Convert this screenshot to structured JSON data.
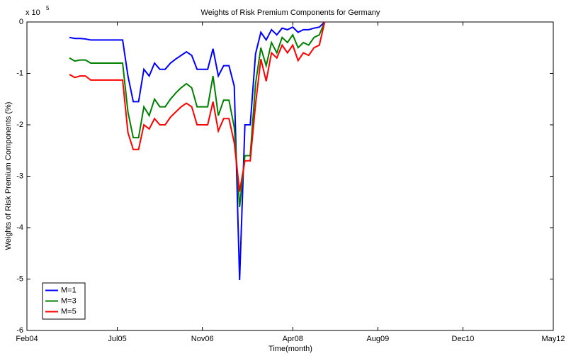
{
  "chart_data": {
    "type": "line",
    "title": "Weights of Risk Premium Components for Germany",
    "x_label": "Time(month)",
    "y_label": "Weights of Risk Premium Components (%)",
    "y_multiplier": "x 10",
    "y_multiplier_exponent": "5",
    "x": [
      "Oct04",
      "Nov04",
      "Dec04",
      "Jan05",
      "Feb05",
      "Mar05",
      "Apr05",
      "May05",
      "Jun05",
      "Jul05",
      "Aug05",
      "Sep05",
      "Oct05",
      "Nov05",
      "Dec05",
      "Jan06",
      "Feb06",
      "Mar06",
      "Apr06",
      "May06",
      "Jun06",
      "Jul06",
      "Aug06",
      "Sep06",
      "Oct06",
      "Nov06",
      "Dec06",
      "Jan07",
      "Feb07",
      "Mar07",
      "Apr07",
      "May07",
      "Jun07",
      "Jul07",
      "Aug07",
      "Sep07",
      "Oct07",
      "Nov07",
      "Dec07",
      "Jan08",
      "Feb08",
      "Mar08",
      "Apr08",
      "May08",
      "Jun08",
      "Jul08",
      "Aug08",
      "Sep08",
      "Oct08"
    ],
    "series": [
      {
        "name": "M=1",
        "color": "#0000ff",
        "values": [
          -0.3,
          -0.32,
          -0.32,
          -0.33,
          -0.35,
          -0.35,
          -0.35,
          -0.35,
          -0.35,
          -0.35,
          -0.35,
          -1.05,
          -1.55,
          -1.55,
          -0.92,
          -1.05,
          -0.8,
          -0.92,
          -0.92,
          -0.8,
          -0.72,
          -0.65,
          -0.58,
          -0.65,
          -0.92,
          -0.92,
          -0.92,
          -0.52,
          -1.05,
          -0.85,
          -0.85,
          -1.25,
          -5.02,
          -2.0,
          -2.0,
          -0.62,
          -0.2,
          -0.35,
          -0.15,
          -0.25,
          -0.12,
          -0.15,
          -0.1,
          -0.2,
          -0.15,
          -0.15,
          -0.12,
          -0.1,
          0
        ]
      },
      {
        "name": "M=3",
        "color": "#008000",
        "values": [
          -0.7,
          -0.76,
          -0.74,
          -0.74,
          -0.8,
          -0.8,
          -0.8,
          -0.8,
          -0.8,
          -0.8,
          -0.8,
          -1.75,
          -2.25,
          -2.25,
          -1.65,
          -1.82,
          -1.5,
          -1.65,
          -1.65,
          -1.5,
          -1.38,
          -1.28,
          -1.2,
          -1.28,
          -1.65,
          -1.65,
          -1.65,
          -1.05,
          -1.82,
          -1.52,
          -1.52,
          -2.05,
          -3.6,
          -2.6,
          -2.6,
          -1.2,
          -0.5,
          -0.85,
          -0.4,
          -0.6,
          -0.3,
          -0.4,
          -0.25,
          -0.5,
          -0.4,
          -0.45,
          -0.3,
          -0.25,
          0
        ]
      },
      {
        "name": "M=5",
        "color": "#ff0000",
        "values": [
          -1.02,
          -1.08,
          -1.05,
          -1.05,
          -1.13,
          -1.13,
          -1.13,
          -1.13,
          -1.13,
          -1.13,
          -1.13,
          -2.15,
          -2.48,
          -2.48,
          -2.0,
          -2.08,
          -1.88,
          -2.0,
          -2.0,
          -1.85,
          -1.75,
          -1.65,
          -1.58,
          -1.65,
          -2.0,
          -2.0,
          -2.0,
          -1.55,
          -2.12,
          -1.88,
          -1.88,
          -2.35,
          -3.3,
          -2.7,
          -2.7,
          -1.6,
          -0.72,
          -1.15,
          -0.6,
          -0.7,
          -0.45,
          -0.6,
          -0.45,
          -0.75,
          -0.6,
          -0.65,
          -0.5,
          -0.45,
          0
        ]
      }
    ],
    "xlim": [
      "Feb04",
      "May12"
    ],
    "xticks": [
      "Feb04",
      "Jul05",
      "Nov06",
      "Apr08",
      "Aug09",
      "Dec10",
      "May12"
    ],
    "ylim": [
      -6,
      0
    ],
    "yticks": [
      -6,
      -5,
      -4,
      -3,
      -2,
      -1,
      0
    ],
    "grid": false,
    "legend": "lower-left"
  }
}
